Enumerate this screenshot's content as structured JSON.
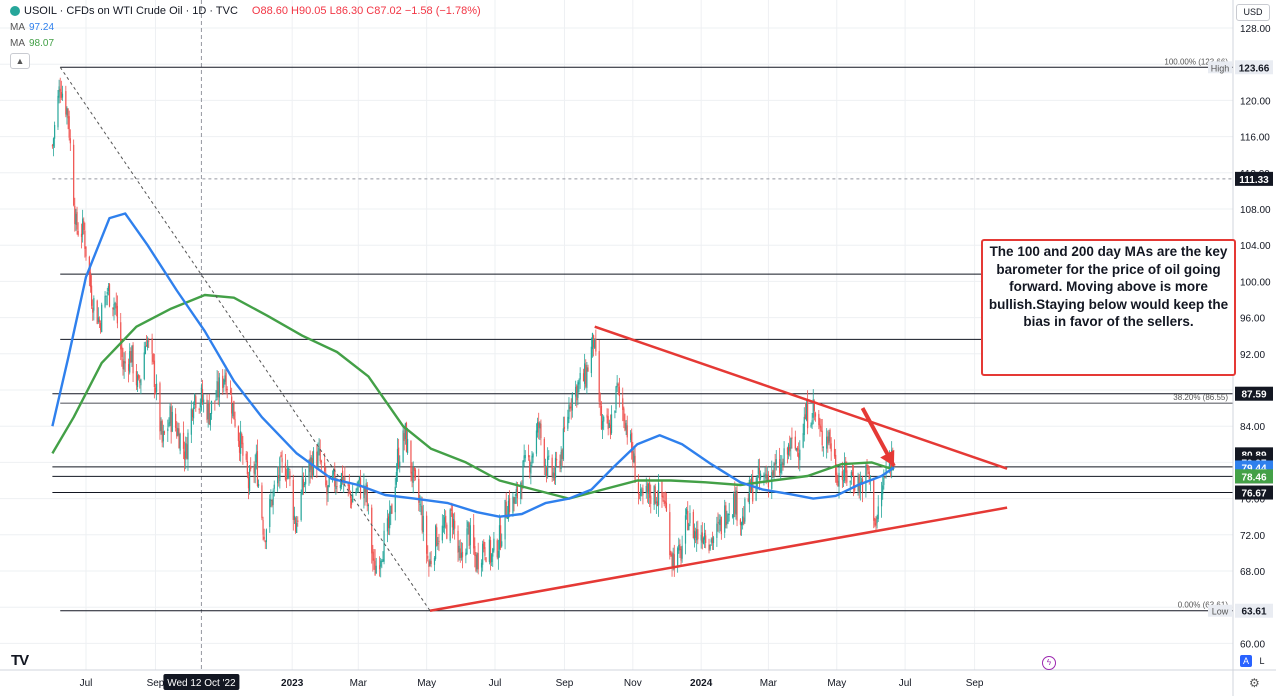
{
  "header": {
    "symbol": "USOIL · CFDs on WTI Crude Oil · 1D · TVC",
    "ohlc": "O88.60 H90.05 L86.30 C87.02 −1.58 (−1.78%)",
    "ma1_label": "MA",
    "ma1_value": "97.24",
    "ma2_label": "MA",
    "ma2_value": "98.07",
    "currency": "USD",
    "collapse_icon": "chevron-up-icon"
  },
  "annotation": {
    "text": "The 100 and 200 day MAs are the key barometer for the price of oil going forward. Moving above is more bullish.Staying below would keep the bias in favor of the sellers."
  },
  "footer": {
    "logo": "TV",
    "auto_btn": "A",
    "log_btn": "L",
    "settings_icon": "gear-icon",
    "flash_icon": "lightning-icon"
  },
  "colors": {
    "up": "#26a69a",
    "down": "#ef5350",
    "ma_blue": "#2f80ed",
    "ma_green": "#43a047",
    "trend": "#e53935",
    "level": "#131722",
    "grid": "#eef0f3"
  },
  "chart_data": {
    "type": "candlestick",
    "y_ticks": [
      "128.00",
      "124.00",
      "120.00",
      "116.00",
      "112.00",
      "108.00",
      "104.00",
      "100.00",
      "96.00",
      "92.00",
      "88.00",
      "84.00",
      "80.00",
      "76.00",
      "72.00",
      "68.00",
      "64.00",
      "60.00"
    ],
    "x_ticks": [
      {
        "label": "Jul",
        "date": "2022-07-01"
      },
      {
        "label": "Sep",
        "date": "2022-09-01"
      },
      {
        "label": "2023",
        "date": "2023-01-01",
        "bold": true
      },
      {
        "label": "Mar",
        "date": "2023-03-01"
      },
      {
        "label": "May",
        "date": "2023-05-01"
      },
      {
        "label": "Jul",
        "date": "2023-07-01"
      },
      {
        "label": "Sep",
        "date": "2023-09-01"
      },
      {
        "label": "Nov",
        "date": "2023-11-01"
      },
      {
        "label": "2024",
        "date": "2024-01-01",
        "bold": true
      },
      {
        "label": "Mar",
        "date": "2024-03-01"
      },
      {
        "label": "May",
        "date": "2024-05-01"
      },
      {
        "label": "Jul",
        "date": "2024-07-01"
      },
      {
        "label": "Sep",
        "date": "2024-09-01"
      }
    ],
    "crosshair": {
      "label": "Wed 12 Oct '22",
      "date": "2022-10-12"
    },
    "h_levels": [
      {
        "price": 123.66,
        "from": "2022-06-08",
        "label": "123.66",
        "tag": "High",
        "fib": "100.00% (123.66)"
      },
      {
        "price": 111.33,
        "from": "2022-06-01",
        "label": "111.33",
        "dashed": true
      },
      {
        "price": 100.8,
        "from": "2022-06-08"
      },
      {
        "price": 93.6,
        "from": "2022-06-08"
      },
      {
        "price": 87.59,
        "from": "2022-06-01",
        "label": "87.59"
      },
      {
        "price": 86.55,
        "from": "2022-06-08",
        "fib": "38.20% (86.55)",
        "thin": true
      },
      {
        "price": 79.5,
        "from": "2022-06-01",
        "label": "79.50"
      },
      {
        "price": 78.46,
        "from": "2022-06-01",
        "label": "78.46"
      },
      {
        "price": 76.67,
        "from": "2022-06-01",
        "label": "76.67"
      },
      {
        "price": 63.61,
        "from": "2022-06-08",
        "label": "63.61",
        "tag": "Low",
        "fib": "0.00% (63.61)"
      }
    ],
    "price_labels": [
      {
        "price": 80.89,
        "label": "80.89",
        "style": "dark"
      },
      {
        "price": 79.97,
        "label": "79.97",
        "style": "dark"
      },
      {
        "price": 79.44,
        "label": "79.44",
        "style": "blue"
      },
      {
        "price": 78.46,
        "label": "78.46",
        "style": "green"
      }
    ],
    "trendlines": [
      {
        "from": [
          "2023-09-28",
          95.0
        ],
        "to": [
          "2024-09-30",
          79.3
        ],
        "color": "trend"
      },
      {
        "from": [
          "2023-05-04",
          63.61
        ],
        "to": [
          "2024-09-30",
          75.0
        ],
        "color": "trend"
      },
      {
        "from": [
          "2022-06-08",
          123.66
        ],
        "to": [
          "2023-05-04",
          63.61
        ],
        "color": "dashed"
      }
    ],
    "arrow": {
      "from": [
        "2024-05-24",
        86.0
      ],
      "to": [
        "2024-06-21",
        79.6
      ]
    },
    "closes": [
      [
        "2022-06-01",
        115.0
      ],
      [
        "2022-06-08",
        122.0
      ],
      [
        "2022-06-15",
        118.5
      ],
      [
        "2022-06-22",
        106.0
      ],
      [
        "2022-06-29",
        105.5
      ],
      [
        "2022-07-06",
        98.5
      ],
      [
        "2022-07-13",
        95.5
      ],
      [
        "2022-07-20",
        99.0
      ],
      [
        "2022-07-27",
        97.5
      ],
      [
        "2022-08-03",
        90.5
      ],
      [
        "2022-08-10",
        92.0
      ],
      [
        "2022-08-17",
        88.0
      ],
      [
        "2022-08-24",
        94.0
      ],
      [
        "2022-08-31",
        89.5
      ],
      [
        "2022-09-07",
        82.0
      ],
      [
        "2022-09-14",
        85.0
      ],
      [
        "2022-09-21",
        83.5
      ],
      [
        "2022-09-28",
        81.0
      ],
      [
        "2022-10-05",
        87.5
      ],
      [
        "2022-10-12",
        87.0
      ],
      [
        "2022-10-19",
        85.5
      ],
      [
        "2022-10-26",
        87.5
      ],
      [
        "2022-11-02",
        90.0
      ],
      [
        "2022-11-09",
        86.0
      ],
      [
        "2022-11-16",
        82.0
      ],
      [
        "2022-11-23",
        77.5
      ],
      [
        "2022-11-30",
        80.0
      ],
      [
        "2022-12-07",
        72.0
      ],
      [
        "2022-12-14",
        76.0
      ],
      [
        "2022-12-21",
        79.0
      ],
      [
        "2022-12-28",
        79.5
      ],
      [
        "2023-01-04",
        73.0
      ],
      [
        "2023-01-11",
        77.5
      ],
      [
        "2023-01-18",
        80.0
      ],
      [
        "2023-01-25",
        80.5
      ],
      [
        "2023-02-01",
        76.5
      ],
      [
        "2023-02-08",
        78.0
      ],
      [
        "2023-02-15",
        78.5
      ],
      [
        "2023-02-22",
        76.0
      ],
      [
        "2023-03-01",
        77.5
      ],
      [
        "2023-03-08",
        76.5
      ],
      [
        "2023-03-15",
        68.0
      ],
      [
        "2023-03-22",
        70.5
      ],
      [
        "2023-03-29",
        73.0
      ],
      [
        "2023-04-05",
        80.5
      ],
      [
        "2023-04-12",
        83.0
      ],
      [
        "2023-04-19",
        78.0
      ],
      [
        "2023-04-26",
        74.5
      ],
      [
        "2023-05-03",
        68.5
      ],
      [
        "2023-05-10",
        72.0
      ],
      [
        "2023-05-17",
        72.5
      ],
      [
        "2023-05-24",
        74.0
      ],
      [
        "2023-05-31",
        68.5
      ],
      [
        "2023-06-07",
        72.5
      ],
      [
        "2023-06-14",
        69.0
      ],
      [
        "2023-06-21",
        71.0
      ],
      [
        "2023-06-28",
        69.5
      ],
      [
        "2023-07-05",
        71.5
      ],
      [
        "2023-07-12",
        75.5
      ],
      [
        "2023-07-19",
        75.5
      ],
      [
        "2023-07-26",
        79.0
      ],
      [
        "2023-08-02",
        80.5
      ],
      [
        "2023-08-09",
        84.0
      ],
      [
        "2023-08-16",
        79.5
      ],
      [
        "2023-08-23",
        78.5
      ],
      [
        "2023-08-30",
        81.5
      ],
      [
        "2023-09-06",
        87.0
      ],
      [
        "2023-09-13",
        88.5
      ],
      [
        "2023-09-20",
        89.5
      ],
      [
        "2023-09-27",
        93.5
      ],
      [
        "2023-10-04",
        84.0
      ],
      [
        "2023-10-11",
        83.5
      ],
      [
        "2023-10-18",
        88.0
      ],
      [
        "2023-10-25",
        85.0
      ],
      [
        "2023-11-01",
        80.5
      ],
      [
        "2023-11-08",
        75.5
      ],
      [
        "2023-11-15",
        76.5
      ],
      [
        "2023-11-22",
        76.5
      ],
      [
        "2023-11-29",
        76.0
      ],
      [
        "2023-12-06",
        69.5
      ],
      [
        "2023-12-13",
        69.5
      ],
      [
        "2023-12-20",
        74.0
      ],
      [
        "2023-12-27",
        72.0
      ],
      [
        "2024-01-03",
        72.5
      ],
      [
        "2024-01-10",
        71.5
      ],
      [
        "2024-01-17",
        72.5
      ],
      [
        "2024-01-24",
        75.0
      ],
      [
        "2024-01-31",
        75.8
      ],
      [
        "2024-02-07",
        73.5
      ],
      [
        "2024-02-14",
        77.0
      ],
      [
        "2024-02-21",
        77.9
      ],
      [
        "2024-02-28",
        78.5
      ],
      [
        "2024-03-06",
        79.0
      ],
      [
        "2024-03-13",
        79.5
      ],
      [
        "2024-03-20",
        81.7
      ],
      [
        "2024-03-27",
        81.5
      ],
      [
        "2024-04-03",
        85.0
      ],
      [
        "2024-04-10",
        86.0
      ],
      [
        "2024-04-17",
        82.7
      ],
      [
        "2024-04-24",
        83.0
      ],
      [
        "2024-05-01",
        79.0
      ],
      [
        "2024-05-08",
        78.5
      ],
      [
        "2024-05-15",
        78.5
      ],
      [
        "2024-05-22",
        77.5
      ],
      [
        "2024-05-29",
        79.0
      ],
      [
        "2024-06-05",
        73.0
      ],
      [
        "2024-06-12",
        78.0
      ],
      [
        "2024-06-19",
        80.7
      ],
      [
        "2024-06-21",
        80.6
      ]
    ],
    "ma_100": [
      [
        "2022-06-01",
        84.0
      ],
      [
        "2022-06-15",
        91.5
      ],
      [
        "2022-07-01",
        100.5
      ],
      [
        "2022-07-22",
        107.0
      ],
      [
        "2022-08-05",
        107.5
      ],
      [
        "2022-08-25",
        104.0
      ],
      [
        "2022-09-20",
        99.0
      ],
      [
        "2022-10-15",
        94.5
      ],
      [
        "2022-11-10",
        89.0
      ],
      [
        "2022-12-05",
        85.0
      ],
      [
        "2023-01-05",
        81.0
      ],
      [
        "2023-02-05",
        78.2
      ],
      [
        "2023-03-01",
        77.5
      ],
      [
        "2023-03-25",
        76.4
      ],
      [
        "2023-04-20",
        76.0
      ],
      [
        "2023-05-20",
        75.5
      ],
      [
        "2023-06-15",
        74.5
      ],
      [
        "2023-07-05",
        74.0
      ],
      [
        "2023-07-25",
        74.3
      ],
      [
        "2023-08-15",
        75.5
      ],
      [
        "2023-09-05",
        76.0
      ],
      [
        "2023-09-25",
        77.0
      ],
      [
        "2023-10-15",
        79.5
      ],
      [
        "2023-11-05",
        82.0
      ],
      [
        "2023-11-25",
        83.0
      ],
      [
        "2023-12-15",
        82.0
      ],
      [
        "2024-01-10",
        79.8
      ],
      [
        "2024-02-05",
        77.8
      ],
      [
        "2024-02-25",
        77.0
      ],
      [
        "2024-03-20",
        76.5
      ],
      [
        "2024-04-10",
        76.0
      ],
      [
        "2024-04-30",
        76.3
      ],
      [
        "2024-05-20",
        77.5
      ],
      [
        "2024-06-10",
        78.5
      ],
      [
        "2024-06-21",
        79.44
      ]
    ],
    "ma_200": [
      [
        "2022-06-01",
        81.0
      ],
      [
        "2022-06-20",
        85.0
      ],
      [
        "2022-07-15",
        91.0
      ],
      [
        "2022-08-15",
        95.0
      ],
      [
        "2022-09-15",
        97.0
      ],
      [
        "2022-10-15",
        98.5
      ],
      [
        "2022-11-10",
        98.2
      ],
      [
        "2022-12-10",
        96.2
      ],
      [
        "2023-01-10",
        94.0
      ],
      [
        "2023-02-10",
        92.2
      ],
      [
        "2023-03-10",
        89.5
      ],
      [
        "2023-04-10",
        84.0
      ],
      [
        "2023-05-05",
        81.5
      ],
      [
        "2023-06-05",
        80.0
      ],
      [
        "2023-07-05",
        78.0
      ],
      [
        "2023-08-05",
        77.0
      ],
      [
        "2023-09-05",
        76.0
      ],
      [
        "2023-10-05",
        77.0
      ],
      [
        "2023-11-05",
        78.0
      ],
      [
        "2023-12-05",
        78.0
      ],
      [
        "2024-01-05",
        77.8
      ],
      [
        "2024-02-05",
        77.5
      ],
      [
        "2024-03-05",
        78.0
      ],
      [
        "2024-04-05",
        78.5
      ],
      [
        "2024-05-05",
        79.8
      ],
      [
        "2024-06-01",
        80.0
      ],
      [
        "2024-06-21",
        79.2
      ]
    ]
  }
}
